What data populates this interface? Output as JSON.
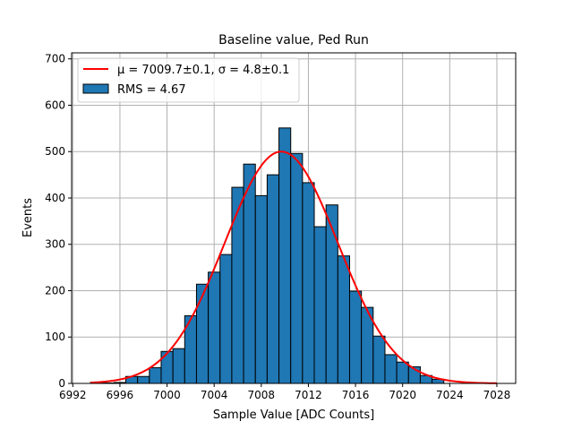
{
  "chart_data": {
    "type": "bar",
    "title": "Baseline value, Ped Run",
    "xlabel": "Sample Value [ADC Counts]",
    "ylabel": "Events",
    "xlim": [
      6991.9,
      7029.6
    ],
    "ylim": [
      0,
      713
    ],
    "xticks": [
      6992,
      6996,
      7000,
      7004,
      7008,
      7012,
      7016,
      7020,
      7024,
      7028
    ],
    "yticks": [
      0,
      100,
      200,
      300,
      400,
      500,
      600,
      700
    ],
    "grid": true,
    "legend_position": "top-left",
    "bin_width": 1,
    "bin_centers": [
      6994,
      6995,
      6996,
      6997,
      6998,
      6999,
      7000,
      7001,
      7002,
      7003,
      7004,
      7005,
      7006,
      7007,
      7008,
      7009,
      7010,
      7011,
      7012,
      7013,
      7014,
      7015,
      7016,
      7017,
      7018,
      7019,
      7020,
      7021,
      7022,
      7023
    ],
    "values": [
      2,
      1,
      2,
      15,
      15,
      34,
      69,
      75,
      146,
      214,
      240,
      278,
      423,
      473,
      405,
      450,
      551,
      496,
      433,
      338,
      385,
      275,
      199,
      164,
      102,
      62,
      46,
      36,
      17,
      9
    ],
    "fit": {
      "mu": 7009.7,
      "sigma": 4.8,
      "amplitude": 500,
      "range": [
        6993.5,
        7028
      ]
    },
    "legend": [
      {
        "label": "μ = 7009.7±0.1, σ = 4.8±0.1",
        "kind": "line",
        "color": "#ff0000"
      },
      {
        "label": "RMS = 4.67",
        "kind": "patch",
        "color": "#1f77b4"
      }
    ],
    "bar_color": "#1f77b4"
  }
}
